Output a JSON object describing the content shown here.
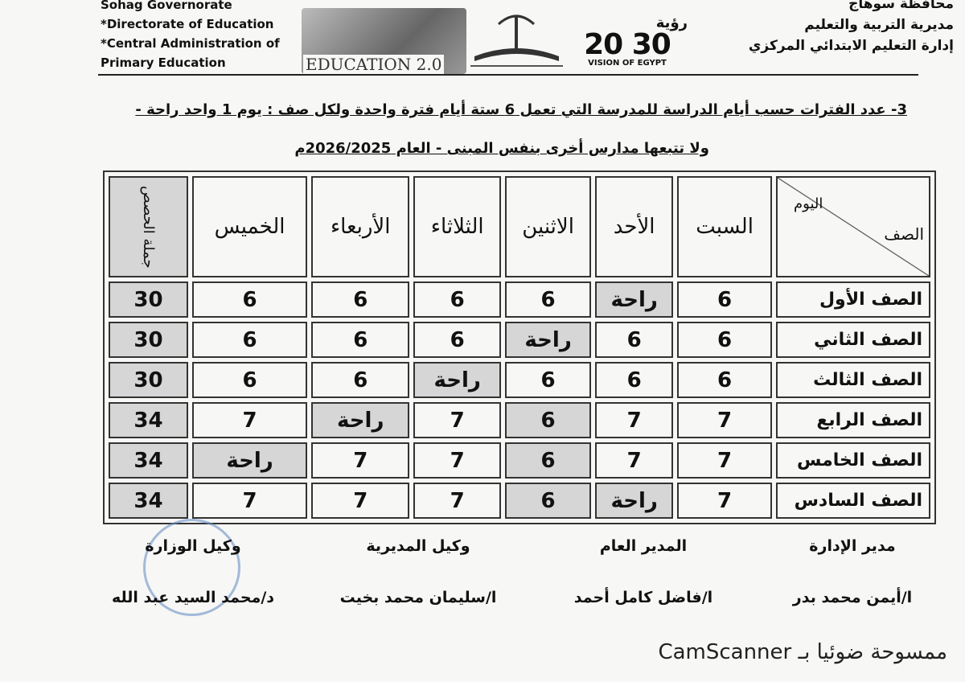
{
  "header": {
    "left_lines": [
      "Sohag Governorate",
      "*Directorate of Education",
      "*Central Administration of",
      "Primary Education"
    ],
    "right_lines": [
      "محافظة سوهاج",
      "مديرية التربية والتعليم",
      "إدارة التعليم الابتدائي المركزي"
    ],
    "logo_education": "EDUCATION 2.0",
    "logo_vision_ar": "رؤية",
    "logo_vision_num": "20 30",
    "logo_vision_en": "VISION OF EGYPT"
  },
  "title": {
    "line1": "3- عدد الفترات حسب أيام الدراسة للمدرسة التي تعمل 6 ستة أيام فترة واحدة ولكل صف : يوم 1 واحد راحة -",
    "line2": "ولا تتبعها مدارس أخرى بنفس المبنى - العام 2026/2025م"
  },
  "table": {
    "corner_top": "اليوم",
    "corner_bottom": "الصف",
    "days": [
      "السبت",
      "الأحد",
      "الاثنين",
      "الثلاثاء",
      "الأربعاء",
      "الخميس"
    ],
    "total_header": "جملة الحصص",
    "rows": [
      {
        "label": "الصف الأول",
        "cells": [
          6,
          "راحة",
          6,
          6,
          6,
          6
        ],
        "total": 30
      },
      {
        "label": "الصف الثاني",
        "cells": [
          6,
          6,
          "راحة",
          6,
          6,
          6
        ],
        "total": 30
      },
      {
        "label": "الصف الثالث",
        "cells": [
          6,
          6,
          6,
          "راحة",
          6,
          6
        ],
        "total": 30
      },
      {
        "label": "الصف الرابع",
        "cells": [
          7,
          7,
          6,
          7,
          "راحة",
          7
        ],
        "total": 34
      },
      {
        "label": "الصف الخامس",
        "cells": [
          7,
          7,
          6,
          7,
          7,
          "راحة"
        ],
        "total": 34
      },
      {
        "label": "الصف السادس",
        "cells": [
          7,
          "راحة",
          6,
          7,
          7,
          7
        ],
        "total": 34
      }
    ]
  },
  "signatures": [
    {
      "title": "مدير الإدارة",
      "name": "ا/أيمن محمد بدر"
    },
    {
      "title": "المدير العام",
      "name": "ا/فاضل كامل أحمد"
    },
    {
      "title": "وكيل المديرية",
      "name": "ا/سليمان محمد بخيت"
    },
    {
      "title": "وكيل الوزارة",
      "name": "د/محمد السيد عبد الله"
    }
  ],
  "footer": "ممسوحة ضوئيا بـ CamScanner"
}
